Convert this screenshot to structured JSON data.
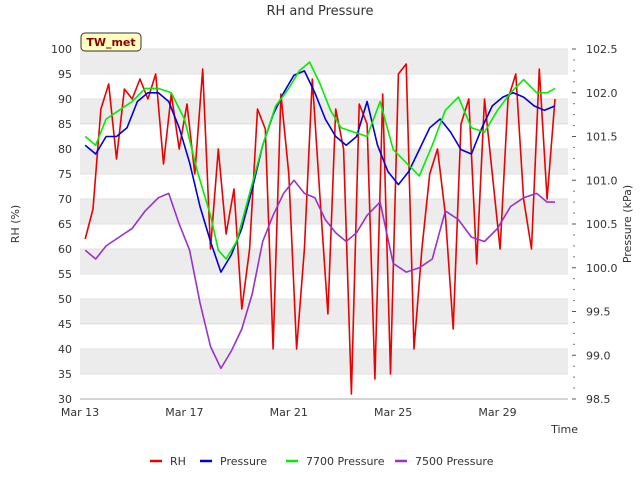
{
  "chart_data": {
    "type": "line",
    "title": "RH and Pressure",
    "badge": "TW_met",
    "xlabel": "Time",
    "ylabel": "RH (%)",
    "y2label": "Pressure (kPa)",
    "xlim": [
      0,
      18.7
    ],
    "ylim": [
      30,
      100
    ],
    "y2lim": [
      98.5,
      102.5
    ],
    "x_ticks": [
      {
        "x": 0,
        "label": "Mar 13"
      },
      {
        "x": 4,
        "label": "Mar 17"
      },
      {
        "x": 8,
        "label": "Mar 21"
      },
      {
        "x": 12,
        "label": "Mar 25"
      },
      {
        "x": 16,
        "label": "Mar 29"
      }
    ],
    "y_ticks": [
      30,
      35,
      40,
      45,
      50,
      55,
      60,
      65,
      70,
      75,
      80,
      85,
      90,
      95,
      100
    ],
    "y2_ticks": [
      "98.5",
      "99.0",
      "99.5",
      "100.0",
      "100.5",
      "101.0",
      "101.5",
      "102.0",
      "102.5"
    ],
    "grid": "horizontal bands",
    "legend_position": "bottom",
    "series": [
      {
        "name": "RH",
        "axis": "left",
        "color": "#ee0000",
        "x": [
          0.2,
          0.5,
          0.8,
          1.1,
          1.4,
          1.7,
          2.0,
          2.3,
          2.6,
          2.9,
          3.2,
          3.5,
          3.8,
          4.1,
          4.4,
          4.7,
          5.0,
          5.3,
          5.6,
          5.9,
          6.2,
          6.5,
          6.8,
          7.1,
          7.4,
          7.7,
          8.0,
          8.3,
          8.6,
          8.9,
          9.2,
          9.5,
          9.8,
          10.1,
          10.4,
          10.7,
          11.0,
          11.3,
          11.6,
          11.9,
          12.2,
          12.5,
          12.8,
          13.1,
          13.4,
          13.7,
          14.0,
          14.3,
          14.6,
          14.9,
          15.2,
          15.5,
          15.8,
          16.1,
          16.4,
          16.7,
          17.0,
          17.3,
          17.6,
          17.9,
          18.2
        ],
        "values": [
          62,
          68,
          88,
          93,
          78,
          92,
          90,
          94,
          90,
          95,
          77,
          91,
          80,
          89,
          75,
          96,
          60,
          80,
          63,
          72,
          48,
          60,
          88,
          84,
          40,
          91,
          75,
          40,
          60,
          94,
          70,
          47,
          88,
          80,
          31,
          89,
          85,
          34,
          91,
          35,
          95,
          97,
          40,
          60,
          75,
          80,
          67,
          44,
          85,
          90,
          57,
          90,
          75,
          60,
          90,
          95,
          70,
          60,
          96,
          70,
          90
        ]
      },
      {
        "name": "Pressure",
        "axis": "right",
        "color": "#0000dd",
        "x": [
          0.2,
          0.6,
          1.0,
          1.4,
          1.8,
          2.2,
          2.6,
          3.0,
          3.4,
          3.8,
          4.2,
          4.6,
          5.0,
          5.4,
          5.8,
          6.2,
          6.6,
          7.0,
          7.4,
          7.8,
          8.2,
          8.6,
          9.0,
          9.4,
          9.8,
          10.2,
          10.6,
          11.0,
          11.4,
          11.8,
          12.2,
          12.6,
          13.0,
          13.4,
          13.8,
          14.2,
          14.6,
          15.0,
          15.4,
          15.8,
          16.2,
          16.6,
          17.0,
          17.4,
          17.8,
          18.2
        ],
        "values": [
          101.4,
          101.3,
          101.5,
          101.5,
          101.6,
          101.9,
          102.0,
          102.0,
          101.9,
          101.6,
          101.2,
          100.7,
          100.3,
          99.95,
          100.15,
          100.45,
          100.9,
          101.4,
          101.75,
          102.0,
          102.2,
          102.25,
          102.0,
          101.7,
          101.5,
          101.4,
          101.5,
          101.9,
          101.4,
          101.1,
          100.95,
          101.1,
          101.35,
          101.6,
          101.7,
          101.55,
          101.35,
          101.3,
          101.6,
          101.85,
          101.95,
          102.0,
          101.95,
          101.85,
          101.8,
          101.85
        ]
      },
      {
        "name": "7700 Pressure",
        "axis": "right",
        "color": "#00ee00",
        "x": [
          0.2,
          0.6,
          1.0,
          1.5,
          2.0,
          2.5,
          3.0,
          3.5,
          4.0,
          4.5,
          5.0,
          5.3,
          5.6,
          6.0,
          6.5,
          7.0,
          7.5,
          8.0,
          8.4,
          8.8,
          9.2,
          9.6,
          10.0,
          10.5,
          11.0,
          11.5,
          12.0,
          12.5,
          13.0,
          13.5,
          14.0,
          14.5,
          15.0,
          15.5,
          16.0,
          16.5,
          17.0,
          17.5,
          17.9,
          18.2
        ],
        "values": [
          101.5,
          101.4,
          101.7,
          101.8,
          101.9,
          102.05,
          102.05,
          102.0,
          101.7,
          101.1,
          100.6,
          100.2,
          100.1,
          100.3,
          100.85,
          101.4,
          101.85,
          102.05,
          102.25,
          102.35,
          102.1,
          101.8,
          101.6,
          101.55,
          101.5,
          101.9,
          101.35,
          101.2,
          101.05,
          101.4,
          101.8,
          101.95,
          101.6,
          101.55,
          101.8,
          102.0,
          102.15,
          102.0,
          102.0,
          102.05
        ]
      },
      {
        "name": "7500 Pressure",
        "axis": "right",
        "color": "#9932cc",
        "x": [
          0.2,
          0.6,
          1.0,
          1.5,
          2.0,
          2.5,
          3.0,
          3.4,
          3.8,
          4.2,
          4.6,
          5.0,
          5.4,
          5.8,
          6.2,
          6.6,
          7.0,
          7.4,
          7.8,
          8.2,
          8.6,
          9.0,
          9.4,
          9.8,
          10.2,
          10.6,
          11.0,
          11.5,
          12.0,
          12.5,
          13.0,
          13.5,
          14.0,
          14.5,
          15.0,
          15.5,
          16.0,
          16.5,
          17.0,
          17.5,
          17.9,
          18.2
        ],
        "values": [
          100.2,
          100.1,
          100.25,
          100.35,
          100.45,
          100.65,
          100.8,
          100.85,
          100.5,
          100.2,
          99.6,
          99.1,
          98.85,
          99.05,
          99.3,
          99.7,
          100.3,
          100.6,
          100.85,
          101.0,
          100.85,
          100.8,
          100.55,
          100.4,
          100.3,
          100.4,
          100.6,
          100.75,
          100.05,
          99.95,
          100.0,
          100.1,
          100.65,
          100.55,
          100.35,
          100.3,
          100.45,
          100.7,
          100.8,
          100.85,
          100.75,
          100.75
        ]
      }
    ]
  }
}
